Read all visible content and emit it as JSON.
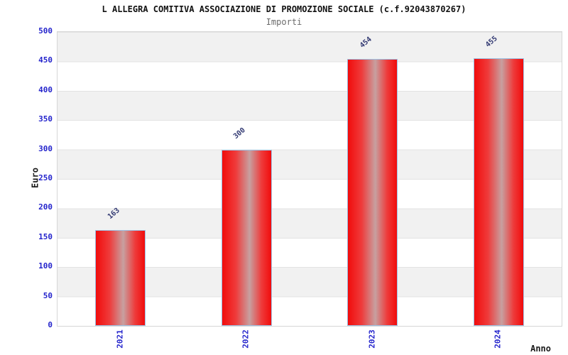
{
  "chart_data": {
    "type": "bar",
    "title": "L ALLEGRA COMITIVA ASSOCIAZIONE DI PROMOZIONE SOCIALE (c.f.92043870267)",
    "subtitle": "Importi",
    "categories": [
      "2021",
      "2022",
      "2023",
      "2024"
    ],
    "values": [
      163,
      300,
      454,
      455
    ],
    "xlabel": "Anno",
    "ylabel": "Euro",
    "ylim": [
      0,
      500
    ],
    "y_tick_step": 50,
    "y_tick_labels": [
      "0",
      "50",
      "100",
      "150",
      "200",
      "250",
      "300",
      "350",
      "400",
      "450",
      "500"
    ],
    "grid": "alternating horizontal bands, gray topmost, gridline each 50",
    "legend": "none",
    "bar_value_labels_rotation_deg": -40,
    "x_tick_rotation_deg": -90,
    "colors": {
      "bar_fill_edge": "#f10c0c",
      "bar_fill_highlight": "#c7a0a0",
      "bar_border": "#9cc2e5",
      "tick_label": "#2424cc",
      "value_label": "#333a73",
      "band_gray": "#f1f1f1",
      "gridline": "#e3e3e3",
      "plot_border": "#d7d7d7",
      "title": "#111111",
      "subtitle": "#6b6b6b",
      "axis_title": "#1a1a1a",
      "background": "#ffffff"
    }
  }
}
